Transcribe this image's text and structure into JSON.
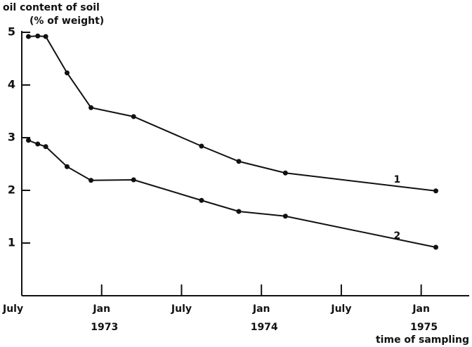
{
  "chart_data": {
    "type": "line",
    "y_label": "oil content of soil",
    "y_unit_label": "(% of weight)",
    "x_label": "time of sampling",
    "x": [
      0.5,
      1.2,
      1.8,
      3.4,
      5.2,
      8.4,
      13.5,
      16.3,
      19.8,
      31.1
    ],
    "series": [
      {
        "name": "1",
        "color": "#111111",
        "values": [
          4.92,
          4.93,
          4.92,
          4.23,
          3.57,
          3.4,
          2.84,
          2.55,
          2.33,
          1.99
        ]
      },
      {
        "name": "2",
        "color": "#111111",
        "values": [
          2.95,
          2.88,
          2.83,
          2.45,
          2.19,
          2.2,
          1.81,
          1.6,
          1.51,
          0.92
        ]
      }
    ],
    "xlim": [
      0,
      33.5
    ],
    "xticks": [
      {
        "value": 0,
        "label": "July"
      },
      {
        "value": 6,
        "label": "Jan"
      },
      {
        "value": 12,
        "label": "July"
      },
      {
        "value": 18,
        "label": "Jan"
      },
      {
        "value": 24,
        "label": "July"
      },
      {
        "value": 30,
        "label": "Jan"
      }
    ],
    "x_year_labels": [
      {
        "value": 6,
        "label": "1973"
      },
      {
        "value": 18,
        "label": "1974"
      },
      {
        "value": 30,
        "label": "1975"
      }
    ],
    "ylim": [
      0,
      5
    ],
    "yticks": [
      1,
      2,
      3,
      4,
      5
    ]
  }
}
